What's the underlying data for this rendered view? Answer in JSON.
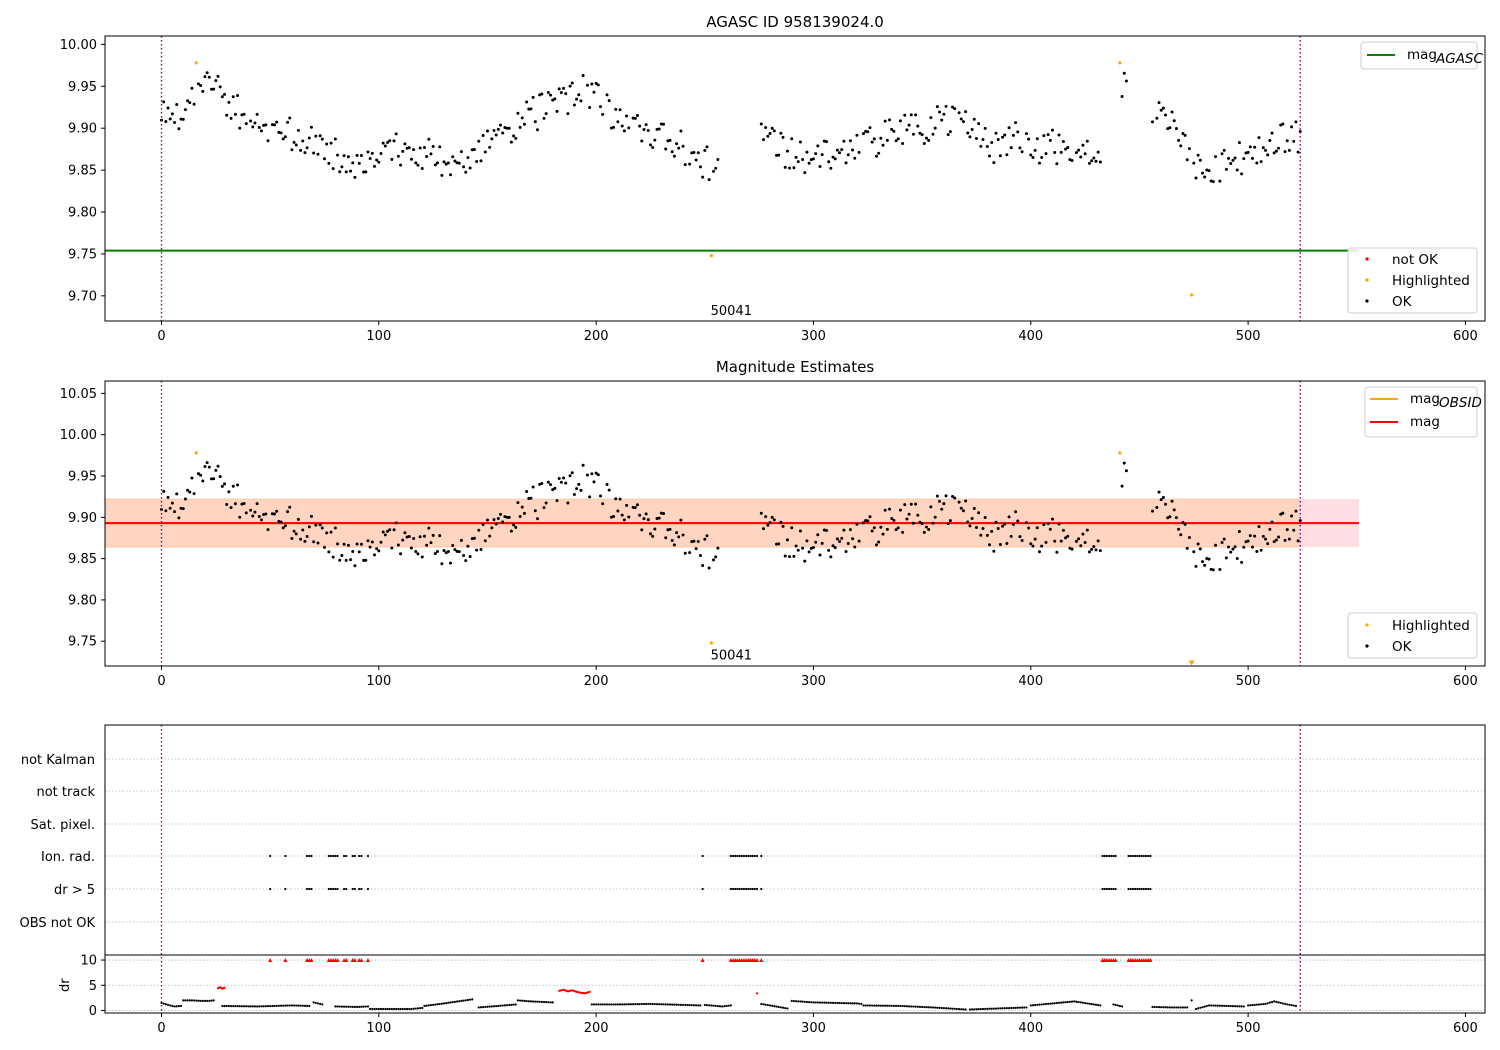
{
  "colors": {
    "ok": "#000000",
    "highlighted": "#ffa500",
    "not_ok": "#ff0000",
    "mag_agasc": "#008000",
    "mag_obsid": "#ffa500",
    "mag": "#ff0000",
    "band_outer": "#ffdde3",
    "band_inner": "#ffd4c0",
    "vline": "#800080",
    "grid": "#b0b0b0"
  },
  "chart_data": [
    {
      "id": "top",
      "type": "scatter",
      "title": "AGASC ID 958139024.0",
      "xlim": [
        -26,
        609
      ],
      "ylim": [
        9.67,
        10.01
      ],
      "xticks": [
        0,
        100,
        200,
        300,
        400,
        500,
        600
      ],
      "xtick_labels": [
        "0",
        "100",
        "200",
        "300",
        "400",
        "500",
        "600"
      ],
      "yticks": [
        9.7,
        9.75,
        9.8,
        9.85,
        9.9,
        9.95,
        10.0
      ],
      "ytick_labels": [
        "9.70",
        "9.75",
        "9.80",
        "9.85",
        "9.90",
        "9.95",
        "10.00"
      ],
      "vlines": [
        0,
        524
      ],
      "mag_agasc": 9.754,
      "mag_agasc_xrange": [
        -26,
        551
      ],
      "highlighted_points": [
        [
          16,
          9.978
        ],
        [
          253,
          9.748
        ],
        [
          441,
          9.978
        ],
        [
          474,
          9.701
        ]
      ],
      "annotation": {
        "text": "50041",
        "x": 253,
        "y": 9.683
      },
      "legends": [
        {
          "position": "upper-right",
          "entries": [
            {
              "kind": "line",
              "label": "mag",
              "sub": "AGASC",
              "color": "#008000"
            }
          ]
        },
        {
          "position": "lower-right",
          "entries": [
            {
              "kind": "marker",
              "label": "not OK",
              "color": "#ff0000"
            },
            {
              "kind": "marker",
              "label": "Highlighted",
              "color": "#ffa500"
            },
            {
              "kind": "marker",
              "label": "OK",
              "color": "#000000"
            }
          ]
        }
      ]
    },
    {
      "id": "middle",
      "type": "scatter",
      "title": "Magnitude Estimates",
      "xlim": [
        -26,
        609
      ],
      "ylim": [
        9.72,
        10.065
      ],
      "xticks": [
        0,
        100,
        200,
        300,
        400,
        500,
        600
      ],
      "xtick_labels": [
        "0",
        "100",
        "200",
        "300",
        "400",
        "500",
        "600"
      ],
      "yticks": [
        9.75,
        9.8,
        9.85,
        9.9,
        9.95,
        10.0,
        10.05
      ],
      "ytick_labels": [
        "9.75",
        "9.80",
        "9.85",
        "9.90",
        "9.95",
        "10.00",
        "10.05"
      ],
      "vlines": [
        0,
        524
      ],
      "mag": 9.893,
      "mag_obsid": 9.893,
      "band": [
        9.864,
        9.922
      ],
      "band_xrange": [
        -26,
        551
      ],
      "highlighted_points": [
        [
          16,
          9.978
        ],
        [
          253,
          9.748
        ],
        [
          441,
          9.978
        ]
      ],
      "offscale_marker": {
        "x": 474,
        "y": 9.723
      },
      "annotation": {
        "text": "50041",
        "x": 253,
        "y": 9.734
      },
      "legends": [
        {
          "position": "upper-right",
          "entries": [
            {
              "kind": "line",
              "label": "mag",
              "sub": "OBSID",
              "color": "#ffa500"
            },
            {
              "kind": "line",
              "label": "mag",
              "sub": "",
              "color": "#ff0000"
            }
          ]
        },
        {
          "position": "lower-right",
          "entries": [
            {
              "kind": "marker",
              "label": "Highlighted",
              "color": "#ffa500"
            },
            {
              "kind": "marker",
              "label": "OK",
              "color": "#000000"
            }
          ]
        }
      ]
    },
    {
      "id": "flags",
      "type": "scatter",
      "xlim": [
        -26,
        609
      ],
      "xticks": [
        0,
        100,
        200,
        300,
        400,
        500,
        600
      ],
      "xtick_labels": [
        "0",
        "100",
        "200",
        "300",
        "400",
        "500",
        "600"
      ],
      "vlines": [
        0,
        524
      ],
      "flag_labels": [
        "not Kalman",
        "not track",
        "Sat. pixel.",
        "Ion. rad.",
        "dr > 5",
        "OBS not OK"
      ],
      "flag_rows": {
        "Ion. rad.": [
          50,
          57,
          67,
          68,
          69,
          77,
          78,
          79,
          80,
          81,
          84,
          85,
          88,
          89,
          91,
          92,
          95,
          249,
          262,
          263,
          264,
          265,
          266,
          267,
          268,
          269,
          270,
          271,
          272,
          273,
          274,
          276,
          433,
          434,
          435,
          436,
          437,
          438,
          439,
          445,
          446,
          447,
          448,
          449,
          450,
          451,
          452,
          453,
          454,
          455
        ],
        "dr > 5": [
          50,
          57,
          67,
          68,
          69,
          77,
          78,
          79,
          80,
          81,
          84,
          85,
          88,
          89,
          91,
          92,
          95,
          249,
          262,
          263,
          264,
          265,
          266,
          267,
          268,
          269,
          270,
          271,
          272,
          273,
          274,
          276,
          433,
          434,
          435,
          436,
          437,
          438,
          439,
          445,
          446,
          447,
          448,
          449,
          450,
          451,
          452,
          453,
          454,
          455
        ]
      },
      "dr_panel": {
        "ylabel": "dr",
        "ylim": [
          -0.5,
          11
        ],
        "yticks": [
          0,
          5,
          10
        ],
        "ytick_labels": [
          "0",
          "5",
          "10"
        ],
        "clip_value": 10,
        "clipped_x": [
          50,
          57,
          67,
          68,
          69,
          77,
          78,
          79,
          80,
          81,
          84,
          85,
          88,
          89,
          91,
          92,
          95,
          249,
          262,
          263,
          264,
          265,
          266,
          267,
          268,
          269,
          270,
          271,
          272,
          273,
          274,
          276,
          433,
          434,
          435,
          436,
          437,
          438,
          439,
          445,
          446,
          447,
          448,
          449,
          450,
          451,
          452,
          453,
          454,
          455
        ],
        "red_segments": [
          {
            "x": [
              26,
              27,
              28,
              29
            ],
            "y": [
              4.4,
              4.6,
              4.3,
              4.5
            ]
          },
          {
            "x": [
              183,
              185,
              187,
              189,
              191,
              193,
              195,
              197
            ],
            "y": [
              3.9,
              4.1,
              3.8,
              4.0,
              3.7,
              3.5,
              3.4,
              3.7
            ]
          },
          {
            "x": [
              274
            ],
            "y": [
              3.4
            ]
          }
        ],
        "black_segments": [
          {
            "x": [
              0,
              3,
              6,
              9
            ],
            "y": [
              1.5,
              1.1,
              0.8,
              0.9
            ]
          },
          {
            "x": [
              10,
              14,
              18,
              22,
              24
            ],
            "y": [
              2.0,
              2.0,
              1.9,
              1.9,
              2.0
            ]
          },
          {
            "x": [
              28,
              44,
              60,
              68
            ],
            "y": [
              0.9,
              0.8,
              1.0,
              0.9
            ]
          },
          {
            "x": [
              70,
              74
            ],
            "y": [
              1.6,
              1.2
            ]
          },
          {
            "x": [
              80,
              90,
              95
            ],
            "y": [
              0.8,
              0.7,
              0.8
            ]
          },
          {
            "x": [
              96,
              105,
              115,
              120
            ],
            "y": [
              0.3,
              0.3,
              0.3,
              0.5
            ]
          },
          {
            "x": [
              121,
              130,
              138,
              143
            ],
            "y": [
              0.9,
              1.4,
              1.9,
              2.2
            ]
          },
          {
            "x": [
              146,
              155,
              163
            ],
            "y": [
              0.6,
              0.9,
              1.2
            ]
          },
          {
            "x": [
              164,
              170,
              180
            ],
            "y": [
              2.0,
              1.8,
              1.6
            ]
          },
          {
            "x": [
              198,
              210,
              225,
              240,
              248
            ],
            "y": [
              1.2,
              1.2,
              1.3,
              1.1,
              1.0
            ]
          },
          {
            "x": [
              250,
              258,
              262
            ],
            "y": [
              1.1,
              0.8,
              1.0
            ]
          },
          {
            "x": [
              276,
              280,
              288
            ],
            "y": [
              1.3,
              1.0,
              0.4
            ]
          },
          {
            "x": [
              290,
              300,
              310,
              320,
              322
            ],
            "y": [
              1.9,
              1.6,
              1.5,
              1.4,
              1.3
            ]
          },
          {
            "x": [
              323,
              340,
              355,
              370
            ],
            "y": [
              1.0,
              0.9,
              0.6,
              0.2
            ]
          },
          {
            "x": [
              372,
              385,
              398
            ],
            "y": [
              0.2,
              0.4,
              0.6
            ]
          },
          {
            "x": [
              400,
              410,
              420,
              432
            ],
            "y": [
              1.0,
              1.4,
              1.8,
              1.0
            ]
          },
          {
            "x": [
              438,
              442
            ],
            "y": [
              1.2,
              0.8
            ]
          },
          {
            "x": [
              456,
              465,
              472
            ],
            "y": [
              0.7,
              0.6,
              0.6
            ]
          },
          {
            "x": [
              476,
              482,
              490,
              498
            ],
            "y": [
              0.3,
              1.0,
              0.9,
              0.8
            ]
          },
          {
            "x": [
              500,
              508,
              512,
              518,
              522
            ],
            "y": [
              1.0,
              1.3,
              1.8,
              1.2,
              0.9
            ]
          }
        ],
        "extra_point": [
          474,
          2.0
        ]
      }
    }
  ]
}
